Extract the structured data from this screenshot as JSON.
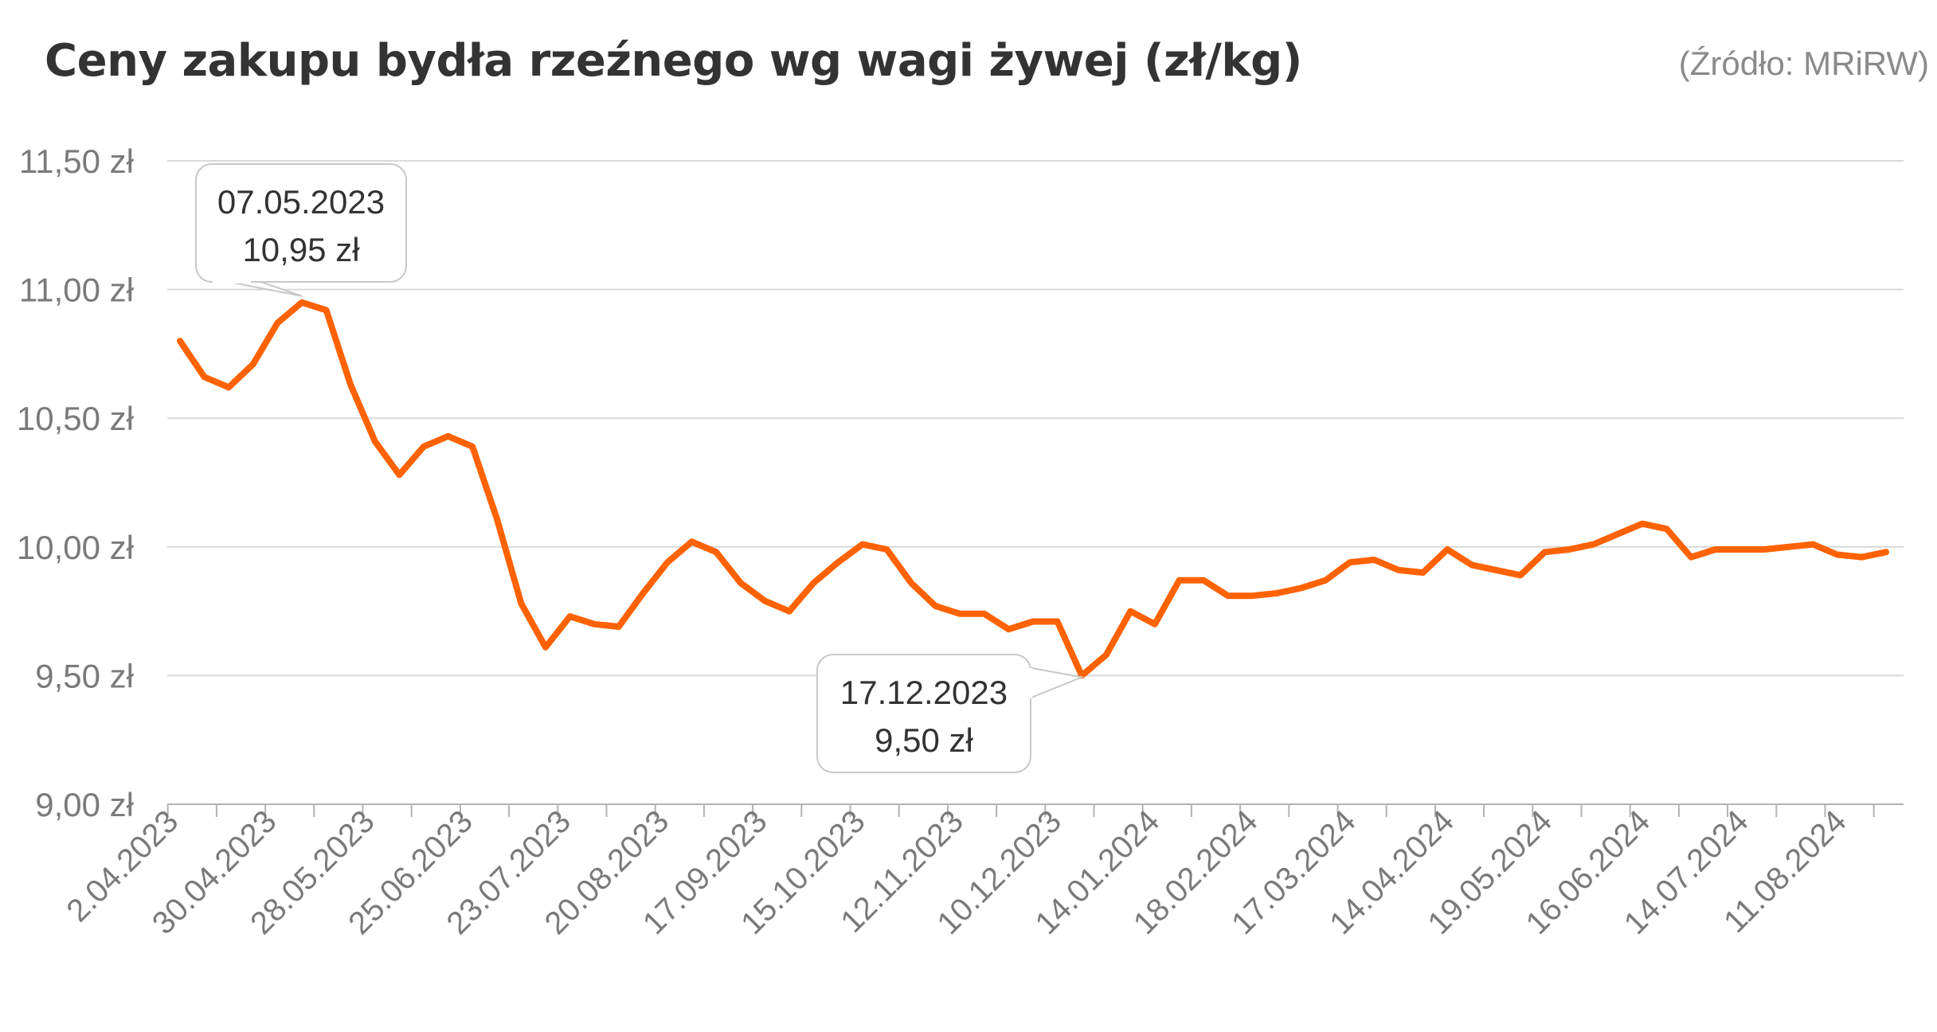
{
  "title": "Ceny zakupu bydła rzeźnego wg wagi żywej (zł/kg)",
  "source": "(Źródło: MRiRW)",
  "colors": {
    "line": "#ff6200",
    "grid": "#d9d9d9",
    "axis": "#b3b3b3",
    "tick_text": "#7a7a7a",
    "title": "#333333"
  },
  "chart_data": {
    "type": "line",
    "title": "Ceny zakupu bydła rzeźnego wg wagi żywej (zł/kg)",
    "xlabel": "",
    "ylabel": "",
    "ylim": [
      9.0,
      11.5
    ],
    "y_ticks": [
      9.0,
      9.5,
      10.0,
      10.5,
      11.0,
      11.5
    ],
    "y_tick_labels": [
      "9,00 zł",
      "9,50 zł",
      "10,00 zł",
      "10,50 zł",
      "11,00 zł",
      "11,50 zł"
    ],
    "x_tick_labels": [
      "2.04.2023",
      "30.04.2023",
      "28.05.2023",
      "25.06.2023",
      "23.07.2023",
      "20.08.2023",
      "17.09.2023",
      "15.10.2023",
      "12.11.2023",
      "10.12.2023",
      "14.01.2024",
      "18.02.2024",
      "17.03.2024",
      "14.04.2024",
      "19.05.2024",
      "16.06.2024",
      "14.07.2024",
      "11.08.2024"
    ],
    "grid": true,
    "legend": "none",
    "series": [
      {
        "values": [
          10.8,
          10.66,
          10.62,
          10.71,
          10.87,
          10.95,
          10.92,
          10.63,
          10.41,
          10.28,
          10.39,
          10.43,
          10.39,
          10.11,
          9.78,
          9.61,
          9.73,
          9.7,
          9.69,
          9.82,
          9.94,
          10.02,
          9.98,
          9.86,
          9.79,
          9.75,
          9.86,
          9.94,
          10.01,
          9.99,
          9.86,
          9.77,
          9.74,
          9.74,
          9.68,
          9.71,
          9.71,
          9.5,
          9.58,
          9.75,
          9.7,
          9.87,
          9.87,
          9.81,
          9.81,
          9.82,
          9.84,
          9.87,
          9.94,
          9.95,
          9.91,
          9.9,
          9.99,
          9.93,
          9.91,
          9.89,
          9.98,
          9.99,
          10.01,
          10.05,
          10.09,
          10.07,
          9.96,
          9.99,
          9.99,
          9.99,
          10.0,
          10.01,
          9.97,
          9.96,
          9.98
        ]
      }
    ],
    "annotations": [
      {
        "index": 5,
        "date": "07.05.2023",
        "value_label": "10,95 zł"
      },
      {
        "index": 37,
        "date": "17.12.2023",
        "value_label": "9,50 zł"
      }
    ]
  }
}
